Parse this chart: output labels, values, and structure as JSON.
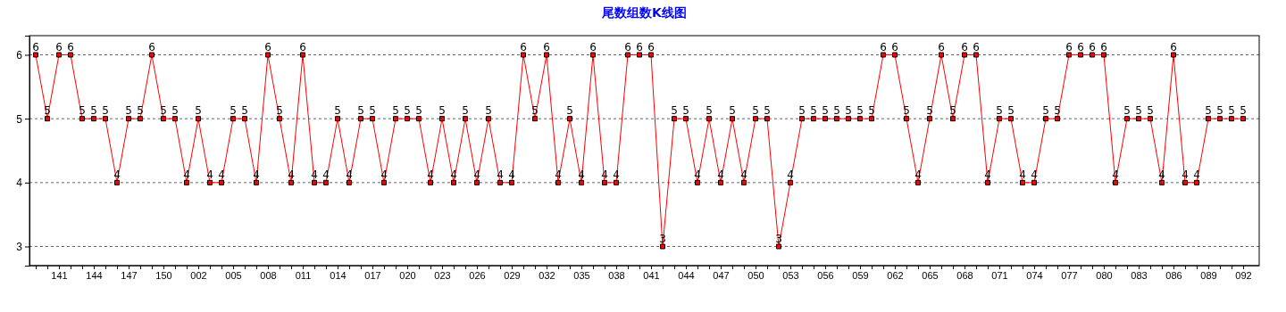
{
  "chart_data": {
    "type": "line",
    "title": "尾数组数K线图",
    "categories": [
      null,
      null,
      "141",
      null,
      null,
      "144",
      null,
      null,
      "147",
      null,
      null,
      "150",
      null,
      null,
      "002",
      null,
      null,
      "005",
      null,
      null,
      "008",
      null,
      null,
      "011",
      null,
      null,
      "014",
      null,
      null,
      "017",
      null,
      null,
      "020",
      null,
      null,
      "023",
      null,
      null,
      "026",
      null,
      null,
      "029",
      null,
      null,
      "032",
      null,
      null,
      "035",
      null,
      null,
      "038",
      null,
      null,
      "041",
      null,
      null,
      "044",
      null,
      null,
      "047",
      null,
      null,
      "050",
      null,
      null,
      "053",
      null,
      null,
      "056",
      null,
      null,
      "059",
      null,
      null,
      "062",
      null,
      null,
      "065",
      null,
      null,
      "068",
      null,
      null,
      "071",
      null,
      null,
      "074",
      null,
      null,
      "077",
      null,
      null,
      "080",
      null,
      null,
      "083",
      null,
      null,
      "086",
      null,
      null,
      "089",
      null,
      null,
      "092"
    ],
    "series": [
      {
        "color": "#ff0000",
        "values": [
          6,
          5,
          6,
          6,
          5,
          5,
          5,
          4,
          5,
          5,
          6,
          5,
          5,
          4,
          5,
          4,
          4,
          5,
          5,
          4,
          6,
          5,
          4,
          6,
          4,
          4,
          5,
          4,
          5,
          5,
          4,
          5,
          5,
          5,
          4,
          5,
          4,
          5,
          4,
          5,
          4,
          4,
          6,
          5,
          6,
          4,
          5,
          4,
          6,
          4,
          4,
          6,
          6,
          6,
          3,
          5,
          5,
          4,
          5,
          4,
          5,
          4,
          5,
          5,
          3,
          4,
          5,
          5,
          5,
          5,
          5,
          5,
          5,
          6,
          6,
          5,
          4,
          5,
          6,
          5,
          6,
          6,
          4,
          5,
          5,
          4,
          4,
          5,
          5,
          6,
          6,
          6,
          6,
          4,
          5,
          5,
          5,
          4,
          6,
          4,
          4,
          5,
          5,
          5,
          5
        ]
      }
    ],
    "ylim": [
      2.7,
      6.3
    ],
    "yticks": [
      3,
      4,
      5,
      6
    ],
    "grid": "y",
    "marker": "square",
    "line_style": "solid",
    "data_labels": true
  }
}
